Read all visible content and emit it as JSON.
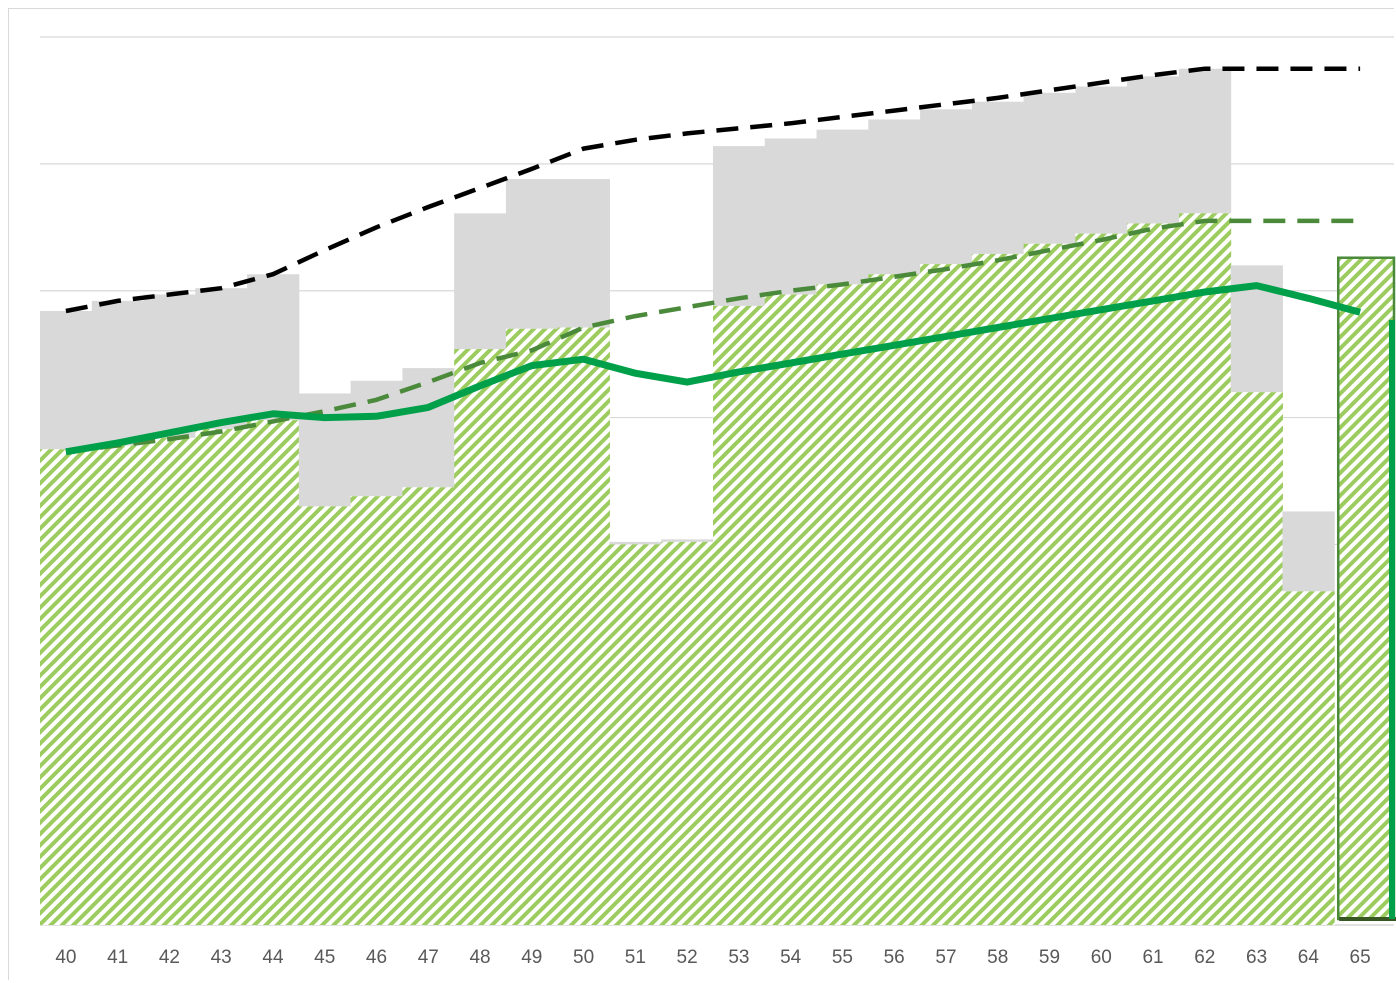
{
  "chart_data": {
    "type": "bar",
    "title": "",
    "xlabel": "",
    "ylabel": "",
    "ylim": [
      0,
      700
    ],
    "y_gridlines": [
      0,
      100,
      200,
      300,
      400,
      500,
      600,
      700
    ],
    "y_tick_labels_shown": false,
    "grid": true,
    "legend": "none",
    "categories": [
      "40",
      "41",
      "42",
      "43",
      "44",
      "45",
      "46",
      "47",
      "48",
      "49",
      "50",
      "51",
      "52",
      "53",
      "54",
      "55",
      "56",
      "57",
      "58",
      "59",
      "60",
      "61",
      "62",
      "63",
      "64",
      "65"
    ],
    "series": [
      {
        "kind": "hatched-bar-base",
        "color": "#92d050",
        "values": [
          375,
          378,
          384,
          391,
          398,
          330,
          338,
          345,
          454,
          470,
          471,
          300,
          302,
          488,
          497,
          505,
          513,
          521,
          529,
          537,
          545,
          553,
          561,
          420,
          263,
          0
        ]
      },
      {
        "kind": "gray-band-top",
        "color": "#d9d9d9",
        "values": [
          484,
          492,
          497,
          502,
          513,
          419,
          429,
          439,
          561,
          588,
          588,
          302,
          304,
          614,
          620,
          627,
          635,
          643,
          649,
          656,
          661,
          669,
          675,
          520,
          326,
          0
        ]
      },
      {
        "kind": "line-solid-green",
        "color": "#00a04b",
        "values": [
          373,
          380,
          388,
          396,
          403,
          400,
          401,
          408,
          425,
          441,
          446,
          435,
          428,
          436,
          443,
          450,
          457,
          464,
          471,
          478,
          485,
          492,
          499,
          504,
          494,
          483
        ]
      },
      {
        "kind": "line-dashed-green",
        "color": "#4a8a3a",
        "values": [
          373,
          378,
          383,
          389,
          397,
          405,
          414,
          428,
          443,
          453,
          471,
          480,
          487,
          494,
          500,
          505,
          511,
          517,
          524,
          532,
          540,
          549,
          555,
          555,
          555,
          555
        ]
      },
      {
        "kind": "line-dashed-black",
        "color": "#000000",
        "values": [
          484,
          492,
          497,
          502,
          513,
          532,
          550,
          566,
          581,
          596,
          612,
          619,
          624,
          628,
          632,
          637,
          642,
          647,
          652,
          658,
          664,
          670,
          675,
          675,
          675,
          675
        ]
      },
      {
        "kind": "highlight-bar",
        "category": "65",
        "hatched_top": 526,
        "outline_color": "#4a8a3a",
        "solid_edge_top": 477,
        "solid_edge_color": "#00a04b"
      }
    ]
  }
}
